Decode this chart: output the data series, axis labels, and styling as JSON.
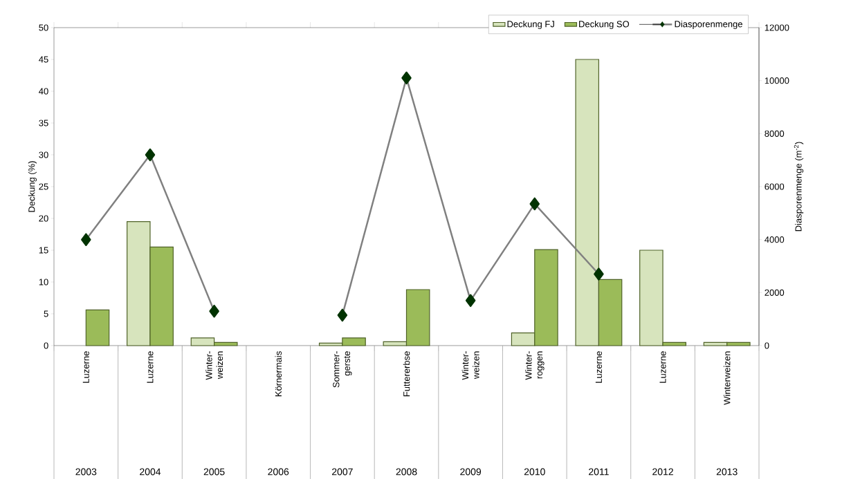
{
  "chart_data": {
    "type": "bar",
    "categories": [
      "Luzerne",
      "Luzerne",
      "Winter- weizen",
      "Körnermais",
      "Sommer- gerste",
      "Futtererbse",
      "Winter- weizen",
      "Winter- roggen",
      "Luzerne",
      "Luzerne",
      "Winterweizen"
    ],
    "series": [
      {
        "name": "Deckung FJ",
        "color": "#d7e4bd",
        "values": [
          null,
          19.5,
          1.2,
          null,
          0.4,
          0.6,
          null,
          2.0,
          45,
          15,
          0.5
        ]
      },
      {
        "name": "Deckung SO",
        "color": "#9bbb59",
        "values": [
          5.6,
          15.5,
          0.5,
          null,
          1.2,
          8.8,
          null,
          15.1,
          10.4,
          0.5,
          0.5
        ]
      },
      {
        "name": "Diasporenmenge",
        "type": "line",
        "axis": "y2",
        "color": "#808080",
        "marker": "diamond",
        "values": [
          4000,
          7200,
          1300,
          null,
          1150,
          10100,
          1700,
          5350,
          2700,
          null,
          null
        ]
      }
    ],
    "ylabel": "Deckung (%)",
    "y2label": "Diasporenmenge (m$^{-2}$)",
    "ylim": [
      0,
      50
    ],
    "yticks": [
      0,
      5,
      10,
      15,
      20,
      25,
      30,
      35,
      40,
      45,
      50
    ],
    "y2lim": [
      0,
      12000
    ],
    "y2ticks": [
      0,
      2000,
      4000,
      6000,
      8000,
      10000,
      12000
    ],
    "legend": "top right",
    "annotations": [
      "2003",
      "2004",
      "2005",
      "2006",
      "2007",
      "2008",
      "2009",
      "2010",
      "2011",
      "2012",
      "2013"
    ]
  }
}
